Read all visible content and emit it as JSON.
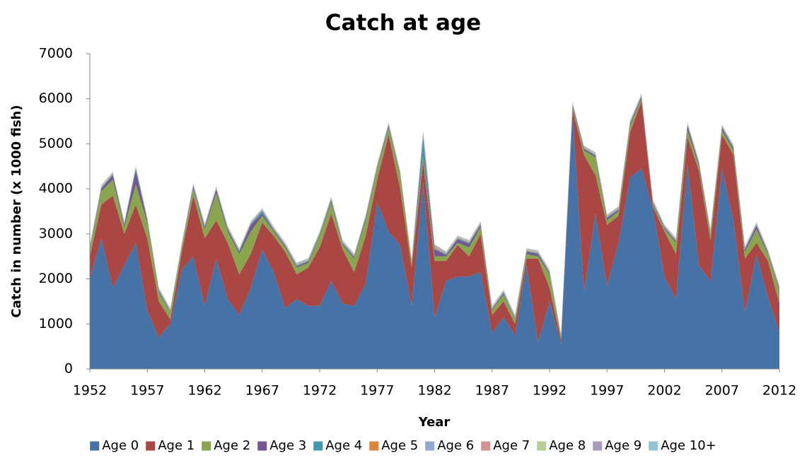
{
  "chart_data": {
    "type": "stacked-area",
    "title": "Catch at  age",
    "x_label": "Year",
    "y_label": "Catch in number (x 1000 fish)",
    "x": [
      1952,
      1953,
      1954,
      1955,
      1956,
      1957,
      1958,
      1959,
      1960,
      1961,
      1962,
      1963,
      1964,
      1965,
      1966,
      1967,
      1968,
      1969,
      1970,
      1971,
      1972,
      1973,
      1974,
      1975,
      1976,
      1977,
      1978,
      1979,
      1980,
      1981,
      1982,
      1983,
      1984,
      1985,
      1986,
      1987,
      1988,
      1989,
      1990,
      1991,
      1992,
      1993,
      1994,
      1995,
      1996,
      1997,
      1998,
      1999,
      2000,
      2001,
      2002,
      2003,
      2004,
      2005,
      2006,
      2007,
      2008,
      2009,
      2010,
      2011,
      2012
    ],
    "xlim": [
      1952,
      2012
    ],
    "xticks": [
      1952,
      1957,
      1962,
      1967,
      1972,
      1977,
      1982,
      1987,
      1992,
      1997,
      2002,
      2007,
      2012
    ],
    "ylim": [
      0,
      7000
    ],
    "yticks": [
      0,
      1000,
      2000,
      3000,
      4000,
      5000,
      6000,
      7000
    ],
    "grid": false,
    "legend": "bottom",
    "series": [
      {
        "name": "Age 0",
        "color": "#4572a7",
        "values": [
          2000,
          2900,
          1800,
          2300,
          2800,
          1300,
          700,
          1000,
          2200,
          2500,
          1400,
          2450,
          1550,
          1200,
          1800,
          2650,
          2150,
          1350,
          1550,
          1400,
          1400,
          1950,
          1450,
          1400,
          1900,
          3700,
          3050,
          2750,
          1400,
          4150,
          1150,
          1950,
          2050,
          2050,
          2150,
          800,
          1150,
          750,
          2300,
          600,
          1500,
          550,
          5700,
          1700,
          3450,
          1850,
          2800,
          4250,
          4450,
          3550,
          2050,
          1550,
          4550,
          2300,
          1950,
          4450,
          3300,
          1250,
          2550,
          1600,
          800
        ]
      },
      {
        "name": "Age 1",
        "color": "#aa4643",
        "values": [
          500,
          750,
          2050,
          700,
          850,
          1600,
          800,
          100,
          400,
          1350,
          1500,
          850,
          1250,
          900,
          750,
          600,
          800,
          1250,
          550,
          850,
          1300,
          1500,
          1200,
          750,
          1050,
          500,
          2150,
          1250,
          850,
          450,
          1250,
          450,
          700,
          450,
          850,
          400,
          350,
          250,
          150,
          1850,
          300,
          100,
          50,
          3050,
          850,
          1350,
          600,
          1000,
          1500,
          50,
          1000,
          1000,
          600,
          2100,
          900,
          750,
          1450,
          1200,
          250,
          800,
          650
        ]
      },
      {
        "name": "Age 2",
        "color": "#89a54e",
        "values": [
          150,
          300,
          350,
          150,
          450,
          350,
          200,
          150,
          100,
          150,
          200,
          600,
          250,
          450,
          500,
          150,
          100,
          100,
          150,
          100,
          250,
          250,
          100,
          300,
          350,
          250,
          150,
          300,
          100,
          150,
          100,
          100,
          50,
          200,
          150,
          100,
          150,
          100,
          100,
          50,
          300,
          50,
          50,
          100,
          400,
          100,
          100,
          150,
          50,
          50,
          50,
          250,
          150,
          100,
          150,
          100,
          100,
          150,
          300,
          150,
          300
        ]
      },
      {
        "name": "Age 3",
        "color": "#71588f",
        "values": [
          30,
          50,
          100,
          50,
          300,
          50,
          30,
          20,
          20,
          50,
          50,
          80,
          50,
          50,
          150,
          50,
          30,
          30,
          30,
          30,
          30,
          50,
          30,
          30,
          50,
          30,
          50,
          30,
          20,
          100,
          150,
          30,
          80,
          80,
          50,
          20,
          30,
          20,
          50,
          50,
          30,
          10,
          50,
          30,
          30,
          50,
          30,
          40,
          40,
          30,
          30,
          30,
          100,
          50,
          30,
          50,
          50,
          50,
          80,
          30,
          30
        ]
      },
      {
        "name": "Age 4",
        "color": "#4198af",
        "values": [
          20,
          20,
          20,
          20,
          50,
          20,
          20,
          20,
          20,
          20,
          20,
          20,
          20,
          20,
          20,
          60,
          20,
          20,
          20,
          20,
          20,
          20,
          20,
          20,
          20,
          20,
          20,
          20,
          20,
          300,
          20,
          20,
          20,
          20,
          20,
          20,
          20,
          20,
          20,
          20,
          20,
          20,
          20,
          20,
          20,
          20,
          20,
          20,
          20,
          20,
          20,
          20,
          20,
          20,
          20,
          20,
          20,
          20,
          20,
          20,
          20
        ]
      },
      {
        "name": "Age 5",
        "color": "#db843d",
        "values": [
          10,
          10,
          10,
          10,
          10,
          10,
          10,
          10,
          10,
          10,
          10,
          10,
          10,
          10,
          10,
          10,
          10,
          10,
          10,
          10,
          10,
          10,
          10,
          10,
          10,
          10,
          10,
          10,
          10,
          10,
          10,
          10,
          10,
          10,
          10,
          10,
          10,
          10,
          10,
          10,
          10,
          10,
          10,
          10,
          10,
          10,
          10,
          10,
          10,
          10,
          10,
          10,
          10,
          10,
          10,
          10,
          10,
          10,
          10,
          10,
          10
        ]
      },
      {
        "name": "Age 6",
        "color": "#93a9cf",
        "values": [
          10,
          10,
          10,
          10,
          10,
          10,
          10,
          10,
          10,
          10,
          10,
          10,
          10,
          10,
          10,
          10,
          10,
          10,
          10,
          10,
          10,
          10,
          10,
          10,
          10,
          10,
          10,
          10,
          10,
          100,
          10,
          10,
          10,
          10,
          10,
          10,
          10,
          10,
          10,
          10,
          10,
          10,
          10,
          10,
          10,
          10,
          10,
          10,
          10,
          10,
          10,
          10,
          10,
          10,
          10,
          10,
          10,
          10,
          10,
          10,
          10
        ]
      },
      {
        "name": "Age 7",
        "color": "#d19392",
        "values": [
          10,
          10,
          10,
          10,
          10,
          10,
          10,
          10,
          10,
          10,
          10,
          10,
          10,
          10,
          10,
          10,
          10,
          10,
          10,
          10,
          10,
          10,
          10,
          10,
          10,
          10,
          10,
          10,
          10,
          10,
          50,
          10,
          10,
          10,
          10,
          10,
          10,
          10,
          10,
          10,
          10,
          10,
          10,
          10,
          10,
          10,
          10,
          10,
          10,
          10,
          10,
          10,
          10,
          10,
          10,
          10,
          10,
          10,
          10,
          10,
          10
        ]
      },
      {
        "name": "Age 8",
        "color": "#b9cd96",
        "values": [
          10,
          10,
          10,
          10,
          10,
          10,
          10,
          10,
          10,
          10,
          10,
          10,
          10,
          10,
          10,
          10,
          10,
          10,
          10,
          10,
          10,
          10,
          10,
          10,
          10,
          10,
          10,
          10,
          10,
          10,
          10,
          10,
          10,
          10,
          10,
          10,
          10,
          10,
          10,
          10,
          10,
          10,
          10,
          10,
          10,
          10,
          10,
          10,
          10,
          10,
          10,
          10,
          10,
          10,
          10,
          10,
          10,
          10,
          10,
          10,
          10
        ]
      },
      {
        "name": "Age 9",
        "color": "#a99bbd",
        "values": [
          10,
          10,
          10,
          10,
          10,
          10,
          10,
          10,
          10,
          10,
          10,
          10,
          10,
          10,
          10,
          10,
          10,
          10,
          10,
          10,
          10,
          10,
          10,
          10,
          10,
          10,
          10,
          10,
          10,
          10,
          10,
          10,
          10,
          10,
          10,
          10,
          10,
          10,
          10,
          10,
          10,
          10,
          10,
          10,
          10,
          10,
          10,
          10,
          10,
          10,
          10,
          10,
          10,
          10,
          10,
          10,
          10,
          10,
          10,
          10,
          10
        ]
      },
      {
        "name": "Age 10+",
        "color": "#92c3d5",
        "values": [
          10,
          10,
          10,
          10,
          10,
          10,
          10,
          10,
          10,
          10,
          10,
          10,
          10,
          10,
          10,
          10,
          10,
          10,
          10,
          10,
          10,
          10,
          10,
          10,
          10,
          10,
          10,
          10,
          10,
          10,
          10,
          10,
          10,
          10,
          10,
          10,
          10,
          10,
          10,
          10,
          10,
          10,
          10,
          10,
          10,
          10,
          10,
          10,
          10,
          10,
          10,
          10,
          10,
          10,
          10,
          10,
          10,
          10,
          10,
          10,
          10
        ]
      }
    ]
  }
}
